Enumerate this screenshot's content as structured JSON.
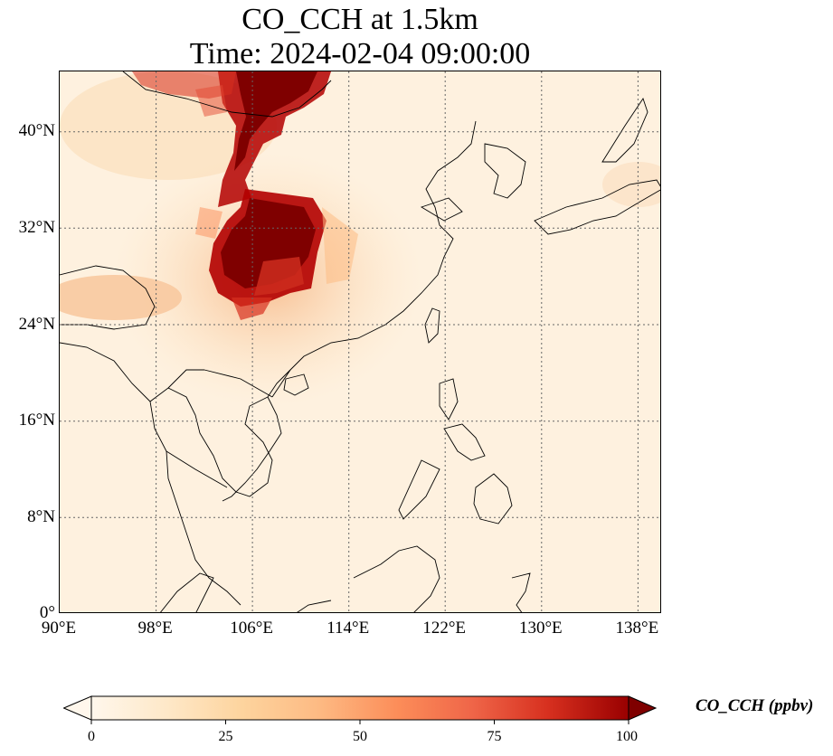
{
  "title": {
    "line1": "CO_CCH at 1.5km",
    "line2": "Time: 2024-02-04 09:00:00"
  },
  "map": {
    "lon_range": [
      90,
      140
    ],
    "lat_range": [
      0,
      45
    ],
    "lat_ticks": [
      "40°N",
      "32°N",
      "24°N",
      "16°N",
      "8°N",
      "0°"
    ],
    "lon_ticks": [
      "90°E",
      "98°E",
      "106°E",
      "114°E",
      "122°E",
      "130°E",
      "138°E"
    ],
    "gridlines": "dotted"
  },
  "colorbar": {
    "label": "CO_CCH (ppbv)",
    "ticks": [
      "0",
      "25",
      "50",
      "75",
      "100"
    ],
    "range": [
      0,
      100
    ],
    "extend": "both",
    "colormap": "OrRd"
  }
}
